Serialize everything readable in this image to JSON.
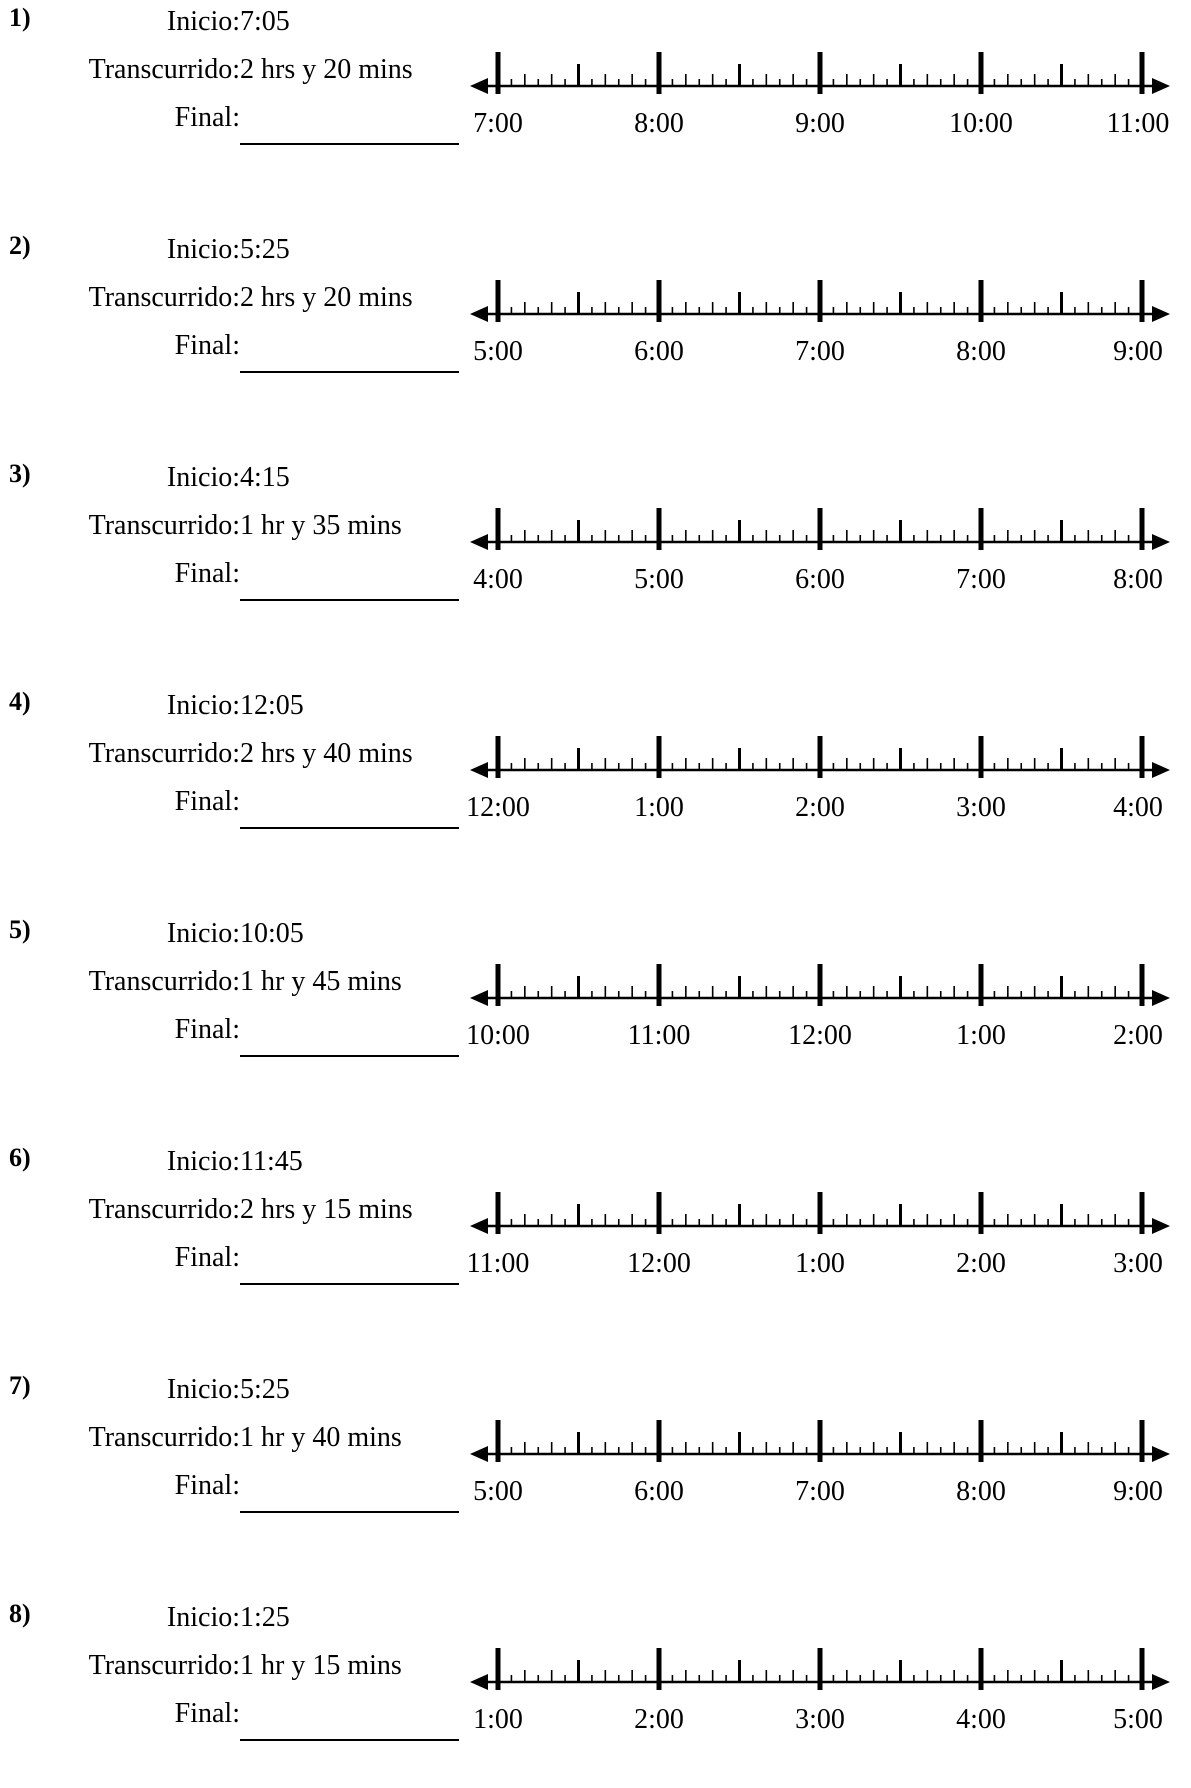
{
  "labels": {
    "start": "Inicio:",
    "elapsed": "Transcurrido:",
    "final": "Final:"
  },
  "problems": [
    {
      "number": "1)",
      "start": "7:05",
      "elapsed": "2 hrs y 20 mins",
      "ticks": [
        "7:00",
        "8:00",
        "9:00",
        "10:00",
        "11:00"
      ]
    },
    {
      "number": "2)",
      "start": "5:25",
      "elapsed": "2 hrs y 20 mins",
      "ticks": [
        "5:00",
        "6:00",
        "7:00",
        "8:00",
        "9:00"
      ]
    },
    {
      "number": "3)",
      "start": "4:15",
      "elapsed": "1 hr y 35 mins",
      "ticks": [
        "4:00",
        "5:00",
        "6:00",
        "7:00",
        "8:00"
      ]
    },
    {
      "number": "4)",
      "start": "12:05",
      "elapsed": "2 hrs y 40 mins",
      "ticks": [
        "12:00",
        "1:00",
        "2:00",
        "3:00",
        "4:00"
      ]
    },
    {
      "number": "5)",
      "start": "10:05",
      "elapsed": "1 hr y 45 mins",
      "ticks": [
        "10:00",
        "11:00",
        "12:00",
        "1:00",
        "2:00"
      ]
    },
    {
      "number": "6)",
      "start": "11:45",
      "elapsed": "2 hrs y 15 mins",
      "ticks": [
        "11:00",
        "12:00",
        "1:00",
        "2:00",
        "3:00"
      ]
    },
    {
      "number": "7)",
      "start": "5:25",
      "elapsed": "1 hr y 40 mins",
      "ticks": [
        "5:00",
        "6:00",
        "7:00",
        "8:00",
        "9:00"
      ]
    },
    {
      "number": "8)",
      "start": "1:25",
      "elapsed": "1 hr y 15 mins",
      "ticks": [
        "1:00",
        "2:00",
        "3:00",
        "4:00",
        "5:00"
      ]
    }
  ]
}
